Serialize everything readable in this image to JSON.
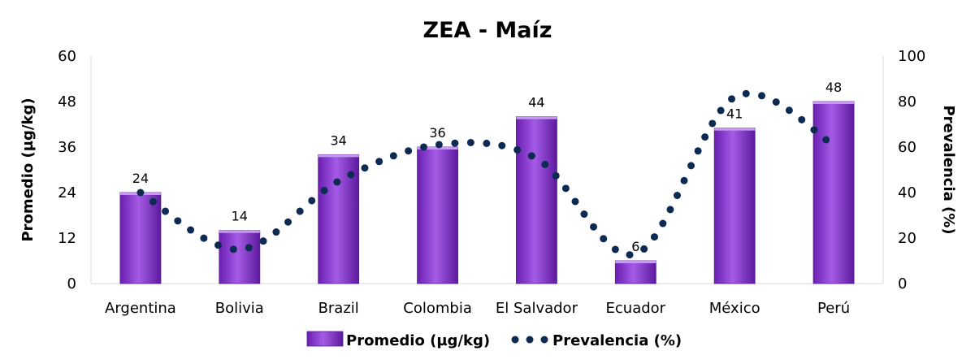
{
  "chart_data": {
    "type": "bar",
    "title": "ZEA - Maíz",
    "categories": [
      "Argentina",
      "Bolivia",
      "Brazil",
      "Colombia",
      "El Salvador",
      "Ecuador",
      "México",
      "Perú"
    ],
    "series": [
      {
        "name": "Promedio (µg/kg)",
        "type": "bar",
        "axis": "left",
        "values": [
          24,
          14,
          34,
          36,
          44,
          6,
          41,
          48
        ],
        "data_labels": [
          "24",
          "14",
          "34",
          "36",
          "44",
          "6",
          "41",
          "48"
        ],
        "color": "#8b3fd1"
      },
      {
        "name": "Prevalencia (%)",
        "type": "line",
        "style": "dotted-smooth",
        "axis": "right",
        "values": [
          40,
          15,
          45,
          61,
          55,
          13,
          82,
          61
        ],
        "color": "#0d2a52"
      }
    ],
    "ylabel": "Promedio (µg/kg)",
    "y2label": "Prevalencia (%)",
    "ylim": [
      0,
      60
    ],
    "yticks": [
      0,
      12,
      24,
      36,
      48,
      60
    ],
    "y2lim": [
      0,
      100
    ],
    "y2ticks": [
      0,
      20,
      40,
      60,
      80,
      100
    ],
    "grid": false,
    "legend": "bottom"
  }
}
